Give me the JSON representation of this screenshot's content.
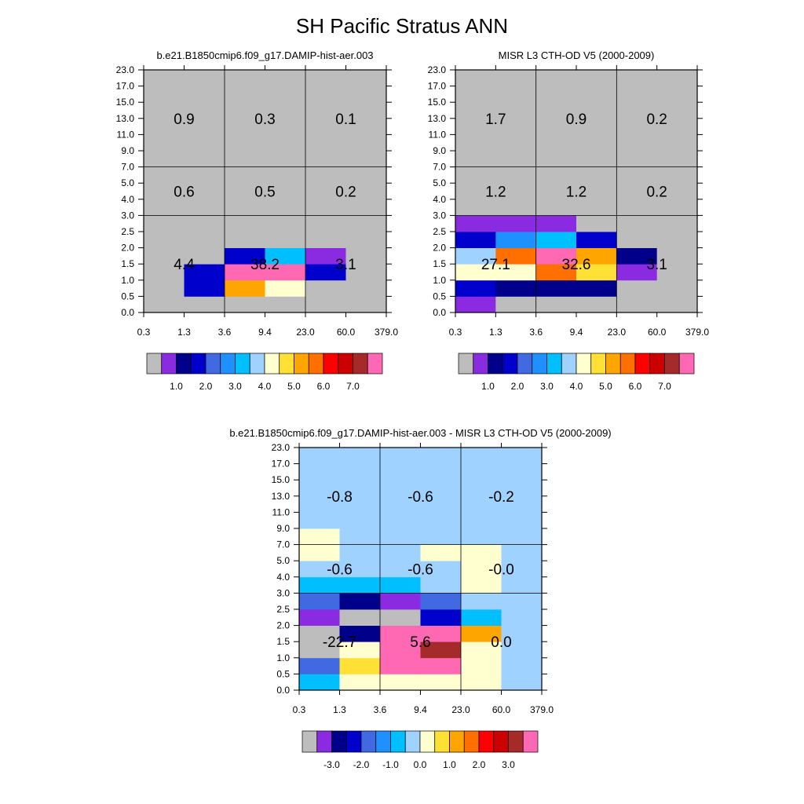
{
  "page": {
    "title": "SH Pacific Stratus ANN"
  },
  "palettes": {
    "main": [
      "#bdbdbd",
      "#8a2be2",
      "#00008b",
      "#0000cd",
      "#4169e1",
      "#1e90ff",
      "#00bfff",
      "#a0d2ff",
      "#ffffd0",
      "#ffe135",
      "#ffa500",
      "#ff7000",
      "#ff0000",
      "#cc0000",
      "#a52a2a",
      "#ff69b4"
    ],
    "diff": [
      "#bdbdbd",
      "#8a2be2",
      "#00008b",
      "#0000cd",
      "#4169e1",
      "#1e90ff",
      "#00bfff",
      "#a0d2ff",
      "#ffffd0",
      "#ffe135",
      "#ffa500",
      "#ff7000",
      "#ff0000",
      "#cc0000",
      "#a52a2a",
      "#ff69b4"
    ]
  },
  "chart_data": [
    {
      "type": "heatmap",
      "title": "b.e21.B1850cmip6.f09_g17.DAMIP-hist-aer.003",
      "x_ticks": [
        "0.3",
        "1.3",
        "3.6",
        "9.4",
        "23.0",
        "60.0",
        "379.0"
      ],
      "y_ticks": [
        "0.0",
        "0.5",
        "1.0",
        "1.5",
        "2.0",
        "2.5",
        "3.0",
        "4.0",
        "5.0",
        "7.0",
        "9.0",
        "11.0",
        "13.0",
        "15.0",
        "17.0",
        "23.0"
      ],
      "colorbar_labels": [
        "1.0",
        "2.0",
        "3.0",
        "4.0",
        "5.0",
        "6.0",
        "7.0"
      ],
      "cells": [
        [
          0,
          0,
          0,
          0,
          0,
          0
        ],
        [
          0,
          3,
          10,
          8,
          0,
          0
        ],
        [
          0,
          3,
          15,
          15,
          3,
          0
        ],
        [
          0,
          0,
          3,
          6,
          1,
          0
        ],
        [
          0,
          0,
          0,
          0,
          0,
          0
        ],
        [
          0,
          0,
          0,
          0,
          0,
          0
        ],
        [
          0,
          0,
          0,
          0,
          0,
          0
        ],
        [
          0,
          0,
          0,
          0,
          0,
          0
        ],
        [
          0,
          0,
          0,
          0,
          0,
          0
        ],
        [
          0,
          0,
          0,
          0,
          0,
          0
        ],
        [
          0,
          0,
          0,
          0,
          0,
          0
        ],
        [
          0,
          0,
          0,
          0,
          0,
          0
        ],
        [
          0,
          0,
          0,
          0,
          0,
          0
        ],
        [
          0,
          0,
          0,
          0,
          0,
          0
        ],
        [
          0,
          0,
          0,
          0,
          0,
          0
        ]
      ],
      "sums": [
        {
          "row": 0,
          "col": 0,
          "text": "4.4"
        },
        {
          "row": 0,
          "col": 1,
          "text": "38.2"
        },
        {
          "row": 0,
          "col": 2,
          "text": "3.1"
        },
        {
          "row": 1,
          "col": 0,
          "text": "0.6"
        },
        {
          "row": 1,
          "col": 1,
          "text": "0.5"
        },
        {
          "row": 1,
          "col": 2,
          "text": "0.2"
        },
        {
          "row": 2,
          "col": 0,
          "text": "0.9"
        },
        {
          "row": 2,
          "col": 1,
          "text": "0.3"
        },
        {
          "row": 2,
          "col": 2,
          "text": "0.1"
        }
      ]
    },
    {
      "type": "heatmap",
      "title": "MISR L3 CTH-OD V5 (2000-2009)",
      "x_ticks": [
        "0.3",
        "1.3",
        "3.6",
        "9.4",
        "23.0",
        "60.0",
        "379.0"
      ],
      "y_ticks": [
        "0.0",
        "0.5",
        "1.0",
        "1.5",
        "2.0",
        "2.5",
        "3.0",
        "4.0",
        "5.0",
        "7.0",
        "9.0",
        "11.0",
        "13.0",
        "15.0",
        "17.0",
        "23.0"
      ],
      "colorbar_labels": [
        "1.0",
        "2.0",
        "3.0",
        "4.0",
        "5.0",
        "6.0",
        "7.0"
      ],
      "cells": [
        [
          1,
          0,
          0,
          0,
          0,
          0
        ],
        [
          3,
          2,
          2,
          2,
          0,
          0
        ],
        [
          8,
          8,
          11,
          9,
          1,
          0
        ],
        [
          7,
          11,
          15,
          10,
          2,
          0
        ],
        [
          3,
          5,
          6,
          3,
          0,
          0
        ],
        [
          1,
          1,
          1,
          0,
          0,
          0
        ],
        [
          0,
          0,
          0,
          0,
          0,
          0
        ],
        [
          0,
          0,
          0,
          0,
          0,
          0
        ],
        [
          0,
          0,
          0,
          0,
          0,
          0
        ],
        [
          0,
          0,
          0,
          0,
          0,
          0
        ],
        [
          0,
          0,
          0,
          0,
          0,
          0
        ],
        [
          0,
          0,
          0,
          0,
          0,
          0
        ],
        [
          0,
          0,
          0,
          0,
          0,
          0
        ],
        [
          0,
          0,
          0,
          0,
          0,
          0
        ],
        [
          0,
          0,
          0,
          0,
          0,
          0
        ]
      ],
      "sums": [
        {
          "row": 0,
          "col": 0,
          "text": "27.1"
        },
        {
          "row": 0,
          "col": 1,
          "text": "32.6"
        },
        {
          "row": 0,
          "col": 2,
          "text": "3.1"
        },
        {
          "row": 1,
          "col": 0,
          "text": "1.2"
        },
        {
          "row": 1,
          "col": 1,
          "text": "1.2"
        },
        {
          "row": 1,
          "col": 2,
          "text": "0.2"
        },
        {
          "row": 2,
          "col": 0,
          "text": "1.7"
        },
        {
          "row": 2,
          "col": 1,
          "text": "0.9"
        },
        {
          "row": 2,
          "col": 2,
          "text": "0.2"
        }
      ]
    },
    {
      "type": "heatmap",
      "title": "b.e21.B1850cmip6.f09_g17.DAMIP-hist-aer.003 - MISR L3 CTH-OD V5 (2000-2009)",
      "x_ticks": [
        "0.3",
        "1.3",
        "3.6",
        "9.4",
        "23.0",
        "60.0",
        "379.0"
      ],
      "y_ticks": [
        "0.0",
        "0.5",
        "1.0",
        "1.5",
        "2.0",
        "2.5",
        "3.0",
        "4.0",
        "5.0",
        "7.0",
        "9.0",
        "11.0",
        "13.0",
        "15.0",
        "17.0",
        "23.0"
      ],
      "colorbar_labels": [
        "-3.0",
        "-2.0",
        "-1.0",
        "0.0",
        "1.0",
        "2.0",
        "3.0"
      ],
      "cells": [
        [
          6,
          8,
          8,
          8,
          8,
          7
        ],
        [
          4,
          9,
          15,
          15,
          8,
          7
        ],
        [
          0,
          8,
          15,
          14,
          8,
          7
        ],
        [
          0,
          2,
          15,
          15,
          10,
          7
        ],
        [
          1,
          0,
          0,
          3,
          6,
          7
        ],
        [
          4,
          2,
          1,
          4,
          7,
          7
        ],
        [
          6,
          6,
          6,
          7,
          8,
          7
        ],
        [
          7,
          7,
          7,
          7,
          8,
          7
        ],
        [
          8,
          7,
          7,
          8,
          8,
          7
        ],
        [
          8,
          7,
          7,
          7,
          7,
          7
        ],
        [
          7,
          7,
          7,
          7,
          7,
          7
        ],
        [
          7,
          7,
          7,
          7,
          7,
          7
        ],
        [
          7,
          7,
          7,
          7,
          7,
          7
        ],
        [
          7,
          7,
          7,
          7,
          7,
          7
        ],
        [
          7,
          7,
          7,
          7,
          7,
          7
        ]
      ],
      "sums": [
        {
          "row": 0,
          "col": 0,
          "text": "-22.7"
        },
        {
          "row": 0,
          "col": 1,
          "text": "5.6"
        },
        {
          "row": 0,
          "col": 2,
          "text": "0.0"
        },
        {
          "row": 1,
          "col": 0,
          "text": "-0.6"
        },
        {
          "row": 1,
          "col": 1,
          "text": "-0.6"
        },
        {
          "row": 1,
          "col": 2,
          "text": "-0.0"
        },
        {
          "row": 2,
          "col": 0,
          "text": "-0.8"
        },
        {
          "row": 2,
          "col": 1,
          "text": "-0.6"
        },
        {
          "row": 2,
          "col": 2,
          "text": "-0.2"
        }
      ]
    }
  ]
}
